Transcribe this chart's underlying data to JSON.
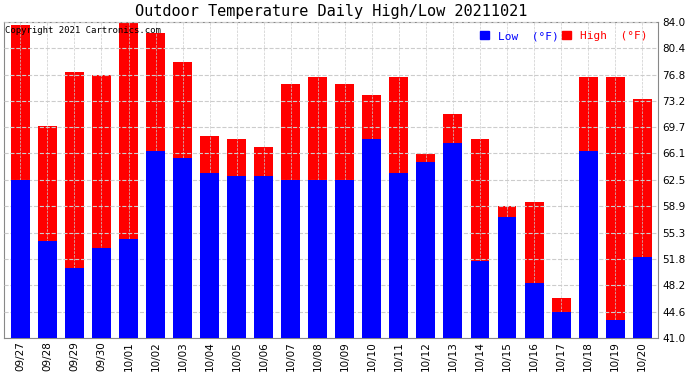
{
  "title": "Outdoor Temperature Daily High/Low 20211021",
  "copyright": "Copyright 2021 Cartronics.com",
  "dates": [
    "09/27",
    "09/28",
    "09/29",
    "09/30",
    "10/01",
    "10/02",
    "10/03",
    "10/04",
    "10/05",
    "10/06",
    "10/07",
    "10/08",
    "10/09",
    "10/10",
    "10/11",
    "10/12",
    "10/13",
    "10/14",
    "10/15",
    "10/16",
    "10/17",
    "10/18",
    "10/19",
    "10/20"
  ],
  "highs": [
    83.5,
    69.8,
    77.2,
    76.8,
    83.8,
    82.5,
    78.5,
    68.5,
    68.0,
    67.0,
    75.5,
    76.5,
    75.5,
    74.0,
    76.5,
    66.0,
    71.5,
    68.0,
    59.0,
    59.5,
    46.5,
    76.5,
    76.5,
    73.5
  ],
  "lows": [
    62.5,
    54.2,
    50.5,
    53.2,
    54.5,
    66.5,
    65.5,
    63.5,
    63.0,
    63.0,
    62.5,
    62.5,
    62.5,
    68.0,
    63.5,
    65.0,
    67.5,
    51.5,
    57.5,
    48.5,
    44.5,
    66.5,
    43.5,
    52.0
  ],
  "high_color": "#ff0000",
  "low_color": "#0000ff",
  "bg_color": "#ffffff",
  "grid_color": "#cccccc",
  "ylim_min": 41.0,
  "ylim_max": 84.0,
  "yticks": [
    41.0,
    44.6,
    48.2,
    51.8,
    55.3,
    58.9,
    62.5,
    66.1,
    69.7,
    73.2,
    76.8,
    80.4,
    84.0
  ],
  "title_fontsize": 11,
  "tick_fontsize": 7.5,
  "legend_fontsize": 8,
  "bar_width": 0.7
}
